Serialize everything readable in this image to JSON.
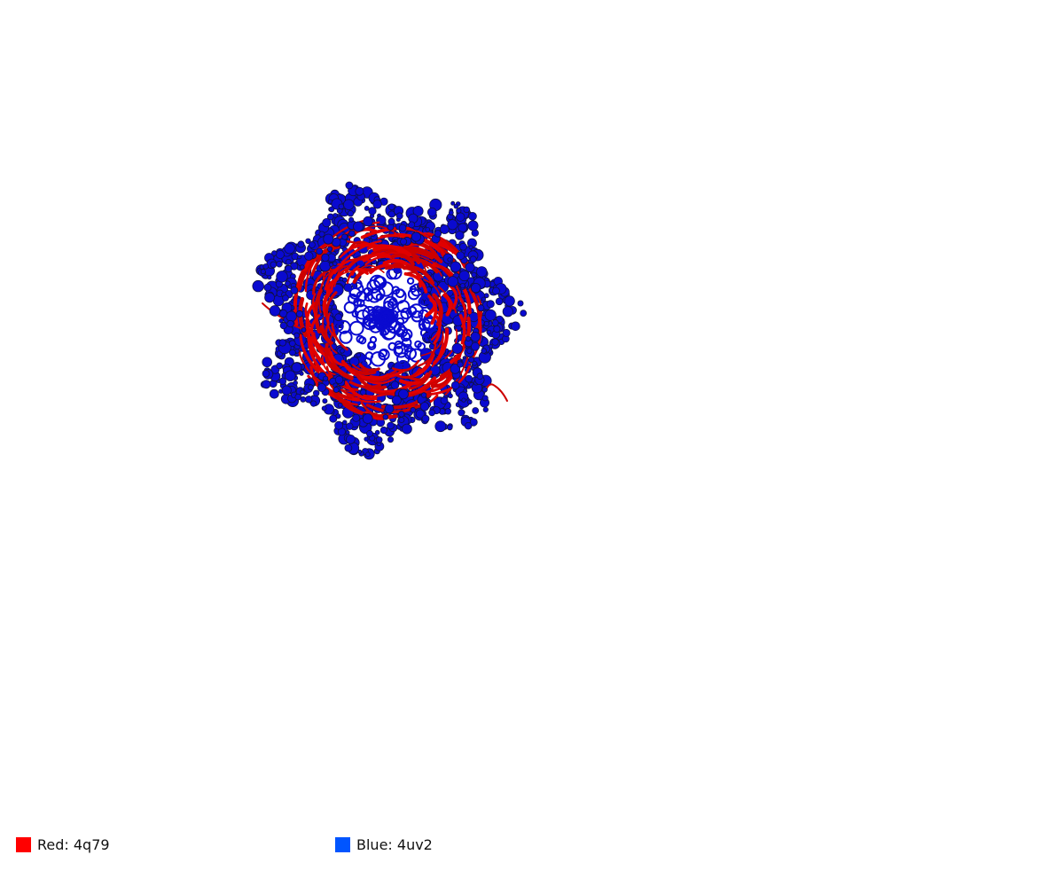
{
  "viewer": {
    "structures": [
      {
        "id": "4q79",
        "color": "#ff0000",
        "render_color": "#cc0000"
      },
      {
        "id": "4uv2",
        "color": "#0055ff",
        "render_color": "#0a0ad0"
      }
    ]
  },
  "legend": [
    {
      "label": "Red: 4q79",
      "color": "#ff0000"
    },
    {
      "label": "Blue: 4uv2",
      "color": "#0055ff"
    }
  ]
}
